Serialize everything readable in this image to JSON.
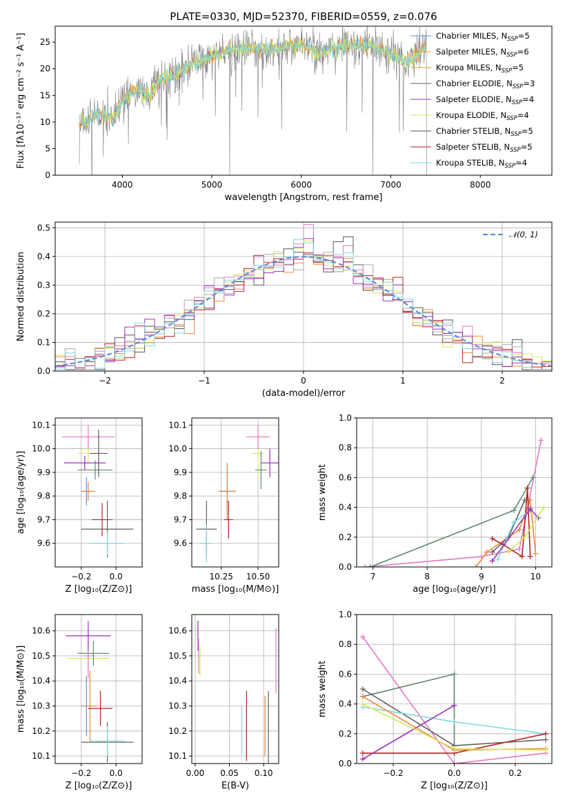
{
  "palette": [
    "#5b8ed6",
    "#e98a3c",
    "#c5a315",
    "#5f5f5f",
    "#9b30b8",
    "#d7e65c",
    "#555555",
    "#b22222",
    "#7fd6dc",
    "#e377c2",
    "#5a8a6a",
    "#aaaaaa"
  ],
  "chart_data": [
    {
      "id": "spectrum",
      "type": "line",
      "title": "PLATE=0330, MJD=52370, FIBERID=0559, z=0.076",
      "xlabel": "wavelength [Angstrom, rest frame]",
      "ylabel": "Flux [fλ10⁻¹⁷ erg cm⁻² s⁻¹ A⁻¹]",
      "xlim": [
        3250,
        8800
      ],
      "ylim": [
        0,
        28
      ],
      "xticks": [
        4000,
        5000,
        6000,
        7000,
        8000
      ],
      "yticks": [
        0,
        5,
        10,
        15,
        20,
        25
      ],
      "grid": false,
      "legend_position": "top-right",
      "legend": [
        {
          "label": "Chabrier MILES, N",
          "sub": "SSP",
          "suffix": "=5",
          "color": "#5b8ed6"
        },
        {
          "label": "Salpeter MILES, N",
          "sub": "SSP",
          "suffix": "=6",
          "color": "#e98a3c"
        },
        {
          "label": "Kroupa MILES, N",
          "sub": "SSP",
          "suffix": "=5",
          "color": "#c5a315"
        },
        {
          "label": "Chabrier ELODIE, N",
          "sub": "SSP",
          "suffix": "=3",
          "color": "#5f5f5f"
        },
        {
          "label": "Salpeter ELODIE, N",
          "sub": "SSP",
          "suffix": "=4",
          "color": "#9b30b8"
        },
        {
          "label": "Kroupa ELODIE, N",
          "sub": "SSP",
          "suffix": "=4",
          "color": "#d7e65c"
        },
        {
          "label": "Chabrier STELIB, N",
          "sub": "SSP",
          "suffix": "=5",
          "color": "#555555"
        },
        {
          "label": "Salpeter STELIB, N",
          "sub": "SSP",
          "suffix": "=5",
          "color": "#b22222"
        },
        {
          "label": "Kroupa STELIB, N",
          "sub": "SSP",
          "suffix": "=4",
          "color": "#7fd6dc"
        }
      ],
      "series_shape": {
        "x": [
          3520,
          3600,
          3700,
          3800,
          3900,
          4000,
          4100,
          4200,
          4300,
          4400,
          4500,
          4600,
          4700,
          4800,
          5000,
          5200,
          5400,
          5600,
          5800,
          6000,
          6200,
          6400,
          6600,
          6800,
          7000,
          7200,
          7300,
          7400
        ],
        "y": [
          10.5,
          9.5,
          11.5,
          11,
          10.5,
          14,
          15.5,
          16,
          15,
          17.5,
          18.5,
          19,
          20,
          21,
          22.5,
          23.5,
          24,
          23.5,
          24,
          24.5,
          23,
          24,
          24.5,
          24,
          23,
          21,
          23,
          24.5
        ]
      }
    },
    {
      "id": "residual-histogram",
      "type": "bar",
      "xlabel": "(data-model)/error",
      "ylabel": "Normed distribution",
      "xlim": [
        -2.5,
        2.5
      ],
      "ylim": [
        0,
        0.52
      ],
      "xticks": [
        -2,
        -1,
        0,
        1,
        2
      ],
      "yticks": [
        0.0,
        0.1,
        0.2,
        0.3,
        0.4,
        0.5
      ],
      "grid": true,
      "legend_position": "top-right",
      "legend": [
        {
          "label": "𝒩(0, 1)",
          "color": "#5b8ed6",
          "style": "dashed"
        }
      ],
      "bin_width": 0.1,
      "reference": {
        "mean": 0,
        "sigma": 1
      }
    },
    {
      "id": "age-vs-z",
      "type": "scatter",
      "xlabel": "Z [log₁₀(Z/Z⊙)]",
      "ylabel": "age  [log₁₀(age/yr)]",
      "xlim": [
        -0.35,
        0.15
      ],
      "ylim": [
        9.5,
        10.13
      ],
      "xticks": [
        -0.2,
        0.0
      ],
      "yticks": [
        9.6,
        9.7,
        9.8,
        9.9,
        10.0,
        10.1
      ],
      "grid": true,
      "points": [
        {
          "x": -0.17,
          "y": 9.82,
          "xerr": 0.03,
          "yerr": 0.06,
          "color": 0
        },
        {
          "x": -0.16,
          "y": 9.82,
          "xerr": 0.04,
          "yerr": 0.04,
          "color": 1
        },
        {
          "x": -0.16,
          "y": 9.98,
          "xerr": 0.06,
          "yerr": 0.04,
          "color": 5
        },
        {
          "x": -0.16,
          "y": 10.05,
          "xerr": 0.15,
          "yerr": 0.05,
          "color": 9
        },
        {
          "x": -0.12,
          "y": 9.91,
          "xerr": 0.1,
          "yerr": 0.04,
          "color": 10
        },
        {
          "x": -0.18,
          "y": 9.94,
          "xerr": 0.12,
          "yerr": 0.03,
          "color": 4
        },
        {
          "x": -0.1,
          "y": 9.98,
          "xerr": 0.05,
          "yerr": 0.1,
          "color": 6
        },
        {
          "x": -0.08,
          "y": 9.7,
          "xerr": 0.06,
          "yerr": 0.07,
          "color": 7
        },
        {
          "x": -0.05,
          "y": 9.66,
          "xerr": 0.15,
          "yerr": 0.12,
          "color": 3
        },
        {
          "x": -0.05,
          "y": 9.6,
          "xerr": 0.1,
          "yerr": 0.05,
          "color": 8
        }
      ]
    },
    {
      "id": "age-vs-mass",
      "type": "scatter",
      "xlabel": "mass [log₁₀(M/M⊙)]",
      "ylabel": "",
      "xlim": [
        10.05,
        10.64
      ],
      "ylim": [
        9.5,
        10.13
      ],
      "xticks": [
        10.25,
        10.5
      ],
      "yticks": [
        9.6,
        9.7,
        9.8,
        9.9,
        10.0,
        10.1
      ],
      "grid": true,
      "points": [
        {
          "x": 10.29,
          "y": 9.82,
          "xerr": 0.05,
          "yerr": 0.1,
          "color": 0
        },
        {
          "x": 10.29,
          "y": 9.82,
          "xerr": 0.06,
          "yerr": 0.12,
          "color": 1
        },
        {
          "x": 10.5,
          "y": 9.98,
          "xerr": 0.04,
          "yerr": 0.1,
          "color": 5
        },
        {
          "x": 10.5,
          "y": 10.05,
          "xerr": 0.08,
          "yerr": 0.05,
          "color": 9
        },
        {
          "x": 10.52,
          "y": 9.91,
          "xerr": 0.04,
          "yerr": 0.08,
          "color": 10
        },
        {
          "x": 10.58,
          "y": 9.94,
          "xerr": 0.06,
          "yerr": 0.06,
          "color": 4
        },
        {
          "x": 10.3,
          "y": 9.7,
          "xerr": 0.03,
          "yerr": 0.08,
          "color": 7
        },
        {
          "x": 10.15,
          "y": 9.66,
          "xerr": 0.07,
          "yerr": 0.12,
          "color": 3
        },
        {
          "x": 10.15,
          "y": 9.6,
          "xerr": 0.04,
          "yerr": 0.08,
          "color": 8
        }
      ]
    },
    {
      "id": "weight-vs-age",
      "type": "line",
      "xlabel": "age  [log₁₀(age/yr)]",
      "ylabel": "mass weight",
      "xlim": [
        6.7,
        10.3
      ],
      "ylim": [
        0,
        1
      ],
      "xticks": [
        7,
        8,
        9,
        10
      ],
      "yticks": [
        0.0,
        0.2,
        0.4,
        0.6,
        0.8,
        1.0
      ],
      "grid": true,
      "series": [
        {
          "color": 9,
          "x": [
            6.85,
            9.0,
            9.7,
            10.1
          ],
          "y": [
            0.0,
            0.07,
            0.12,
            0.85
          ]
        },
        {
          "color": 10,
          "x": [
            6.95,
            9.6,
            9.95
          ],
          "y": [
            0.0,
            0.38,
            0.6
          ]
        },
        {
          "color": 1,
          "x": [
            8.9,
            9.1,
            9.7,
            9.9,
            10.0
          ],
          "y": [
            0.0,
            0.1,
            0.25,
            0.45,
            0.09
          ]
        },
        {
          "color": 7,
          "x": [
            9.2,
            9.4,
            9.75,
            9.85,
            9.9
          ],
          "y": [
            0.19,
            0.15,
            0.07,
            0.53,
            0.07
          ]
        },
        {
          "color": 3,
          "x": [
            9.2,
            9.5,
            9.8
          ],
          "y": [
            0.1,
            0.2,
            0.45
          ]
        },
        {
          "color": 8,
          "x": [
            9.3,
            9.6,
            9.9
          ],
          "y": [
            0.05,
            0.3,
            0.38
          ]
        },
        {
          "color": 4,
          "x": [
            9.2,
            9.9,
            10.05
          ],
          "y": [
            0.04,
            0.39,
            0.33
          ]
        },
        {
          "color": 5,
          "x": [
            9.5,
            9.8,
            10.15
          ],
          "y": [
            0.1,
            0.2,
            0.4
          ]
        }
      ]
    },
    {
      "id": "mass-vs-z",
      "type": "scatter",
      "xlabel": "Z [log₁₀(Z/Z⊙)]",
      "ylabel": "mass [log₁₀(M/M⊙)]",
      "xlim": [
        -0.35,
        0.15
      ],
      "ylim": [
        10.07,
        10.665
      ],
      "xticks": [
        -0.2,
        0.0
      ],
      "yticks": [
        10.1,
        10.2,
        10.3,
        10.4,
        10.5,
        10.6
      ],
      "grid": true,
      "points": [
        {
          "x": -0.17,
          "y": 10.3,
          "xerr": 0.03,
          "yerr": 0.12,
          "color": 0
        },
        {
          "x": -0.15,
          "y": 10.3,
          "xerr": 0.04,
          "yerr": 0.14,
          "color": 1
        },
        {
          "x": -0.16,
          "y": 10.49,
          "xerr": 0.12,
          "yerr": 0.07,
          "color": 5
        },
        {
          "x": -0.16,
          "y": 10.5,
          "xerr": 0.03,
          "yerr": 0.09,
          "color": 9
        },
        {
          "x": -0.13,
          "y": 10.51,
          "xerr": 0.09,
          "yerr": 0.05,
          "color": 10
        },
        {
          "x": -0.16,
          "y": 10.58,
          "xerr": 0.13,
          "yerr": 0.06,
          "color": 4
        },
        {
          "x": -0.09,
          "y": 10.29,
          "xerr": 0.07,
          "yerr": 0.07,
          "color": 7
        },
        {
          "x": -0.05,
          "y": 10.155,
          "xerr": 0.15,
          "yerr": 0.08,
          "color": 3
        },
        {
          "x": -0.05,
          "y": 10.16,
          "xerr": 0.1,
          "yerr": 0.06,
          "color": 8
        }
      ]
    },
    {
      "id": "mass-vs-ebv",
      "type": "scatter",
      "xlabel": "E(B-V)",
      "ylabel": "",
      "xlim": [
        -0.005,
        0.122
      ],
      "ylim": [
        10.07,
        10.665
      ],
      "xticks": [
        0.0,
        0.05,
        0.1
      ],
      "yticks": [
        10.1,
        10.2,
        10.3,
        10.4,
        10.5,
        10.6
      ],
      "grid": true,
      "points": [
        {
          "x": 0.004,
          "y": 10.58,
          "xerr": 0,
          "yerr": 0.06,
          "color": 4
        },
        {
          "x": 0.005,
          "y": 10.5,
          "xerr": 0,
          "yerr": 0.07,
          "color": 9
        },
        {
          "x": 0.007,
          "y": 10.48,
          "xerr": 0,
          "yerr": 0.06,
          "color": 5
        },
        {
          "x": 0.068,
          "y": 10.2,
          "xerr": 0,
          "yerr": 0.1,
          "color": 8
        },
        {
          "x": 0.075,
          "y": 10.22,
          "xerr": 0,
          "yerr": 0.14,
          "color": 7
        },
        {
          "x": 0.102,
          "y": 10.22,
          "xerr": 0,
          "yerr": 0.12,
          "color": 1
        },
        {
          "x": 0.107,
          "y": 10.2,
          "xerr": 0,
          "yerr": 0.16,
          "color": 3
        },
        {
          "x": 0.118,
          "y": 10.48,
          "xerr": 0,
          "yerr": 0.13,
          "color": 9
        }
      ]
    },
    {
      "id": "weight-vs-z",
      "type": "line",
      "xlabel": "Z [log₁₀(Z/Z⊙)]",
      "ylabel": "mass weight",
      "xlim": [
        -0.32,
        0.32
      ],
      "ylim": [
        0,
        1
      ],
      "xticks": [
        -0.2,
        0.0,
        0.2
      ],
      "yticks": [
        0.0,
        0.2,
        0.4,
        0.6,
        0.8,
        1.0
      ],
      "grid": true,
      "series": [
        {
          "color": 9,
          "x": [
            -0.3,
            0.0,
            0.3
          ],
          "y": [
            0.85,
            0.0,
            0.07
          ]
        },
        {
          "color": 10,
          "x": [
            -0.3,
            0.0,
            0.0
          ],
          "y": [
            0.45,
            0.6,
            0.12
          ]
        },
        {
          "color": 3,
          "x": [
            -0.3,
            0.0,
            0.3
          ],
          "y": [
            0.5,
            0.12,
            0.16
          ]
        },
        {
          "color": 8,
          "x": [
            -0.3,
            0.0,
            0.3
          ],
          "y": [
            0.38,
            0.28,
            0.2
          ]
        },
        {
          "color": 7,
          "x": [
            -0.3,
            0.0,
            0.3
          ],
          "y": [
            0.07,
            0.07,
            0.2
          ]
        },
        {
          "color": 4,
          "x": [
            -0.3,
            0.0
          ],
          "y": [
            0.03,
            0.39
          ]
        },
        {
          "color": 1,
          "x": [
            -0.3,
            0.0,
            0.3
          ],
          "y": [
            0.45,
            0.09,
            0.1
          ]
        },
        {
          "color": 5,
          "x": [
            -0.3,
            0.0,
            0.3
          ],
          "y": [
            0.4,
            0.1,
            0.09
          ]
        }
      ]
    }
  ]
}
